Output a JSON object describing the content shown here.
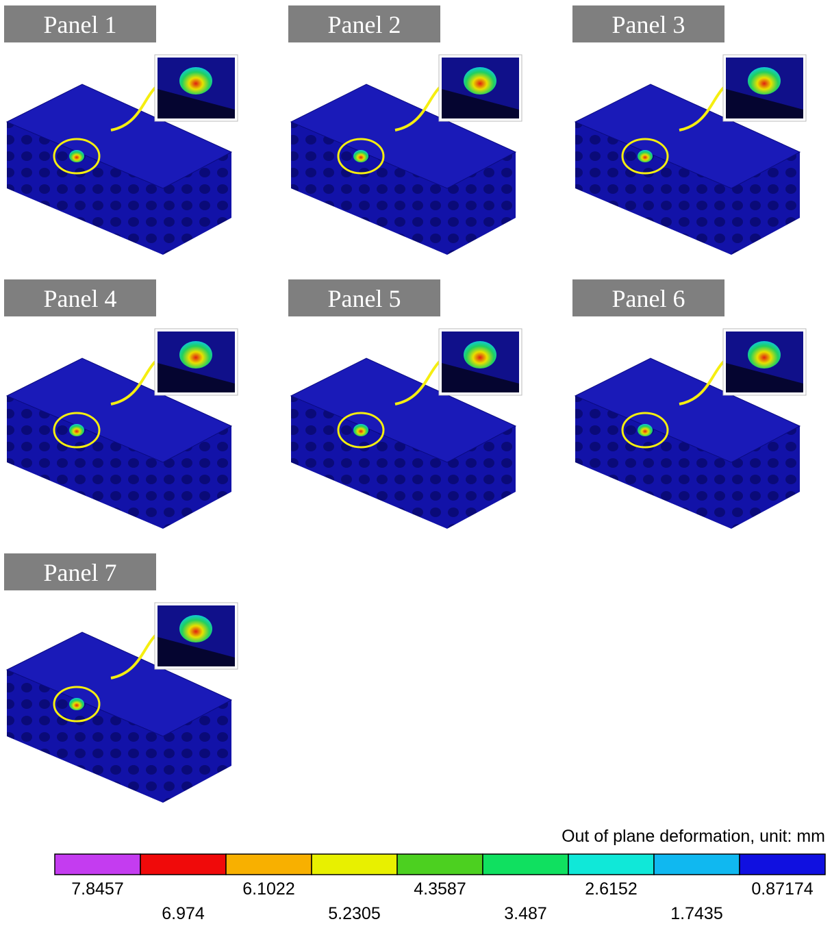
{
  "panels": [
    {
      "label": "Panel 1"
    },
    {
      "label": "Panel 2"
    },
    {
      "label": "Panel 3"
    },
    {
      "label": "Panel 4"
    },
    {
      "label": "Panel 5"
    },
    {
      "label": "Panel 6"
    },
    {
      "label": "Panel 7"
    }
  ],
  "legend": {
    "title": "Out of plane deformation, unit: mm",
    "segments": [
      {
        "color": "#c43cf0",
        "label": "7.8457"
      },
      {
        "color": "#f00a0a",
        "label": "6.974"
      },
      {
        "color": "#f8b000",
        "label": "6.1022"
      },
      {
        "color": "#e8f000",
        "label": "5.2305"
      },
      {
        "color": "#4cd020",
        "label": "4.3587"
      },
      {
        "color": "#10e060",
        "label": "3.487"
      },
      {
        "color": "#10e8d8",
        "label": "2.6152"
      },
      {
        "color": "#10b8f0",
        "label": "1.7435"
      },
      {
        "color": "#1010e0",
        "label": "0.87174"
      }
    ]
  }
}
